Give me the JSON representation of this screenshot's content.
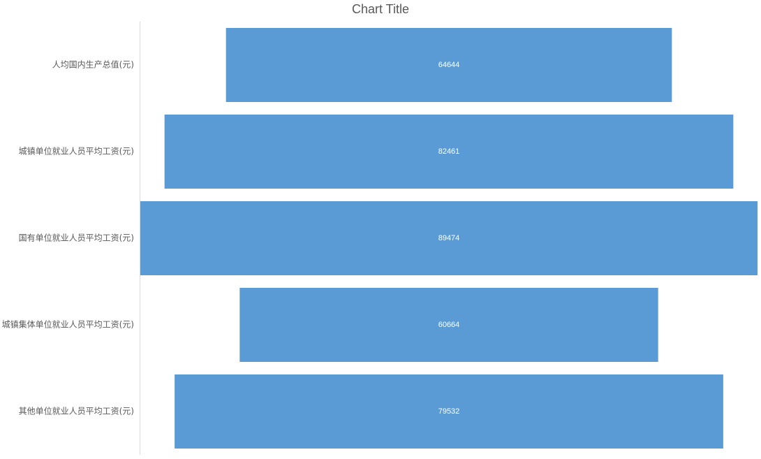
{
  "chart_data": {
    "type": "bar",
    "orientation": "horizontal",
    "style": "funnel",
    "title": "Chart Title",
    "categories": [
      "人均国内生产总值(元)",
      "城镇单位就业人员平均工资(元)",
      "国有单位就业人员平均工资(元)",
      "城镇集体单位就业人员平均工资(元)",
      "其他单位就业人员平均工资(元)"
    ],
    "values": [
      64644,
      82461,
      89474,
      60664,
      79532
    ],
    "data_labels": [
      "64644",
      "82461",
      "89474",
      "60664",
      "79532"
    ],
    "bar_color": "#5B9BD5",
    "label_color": "#FFFFFF",
    "axis_line_color": "#D9D9D9",
    "text_color": "#595959",
    "grid": false,
    "legend": "none"
  }
}
